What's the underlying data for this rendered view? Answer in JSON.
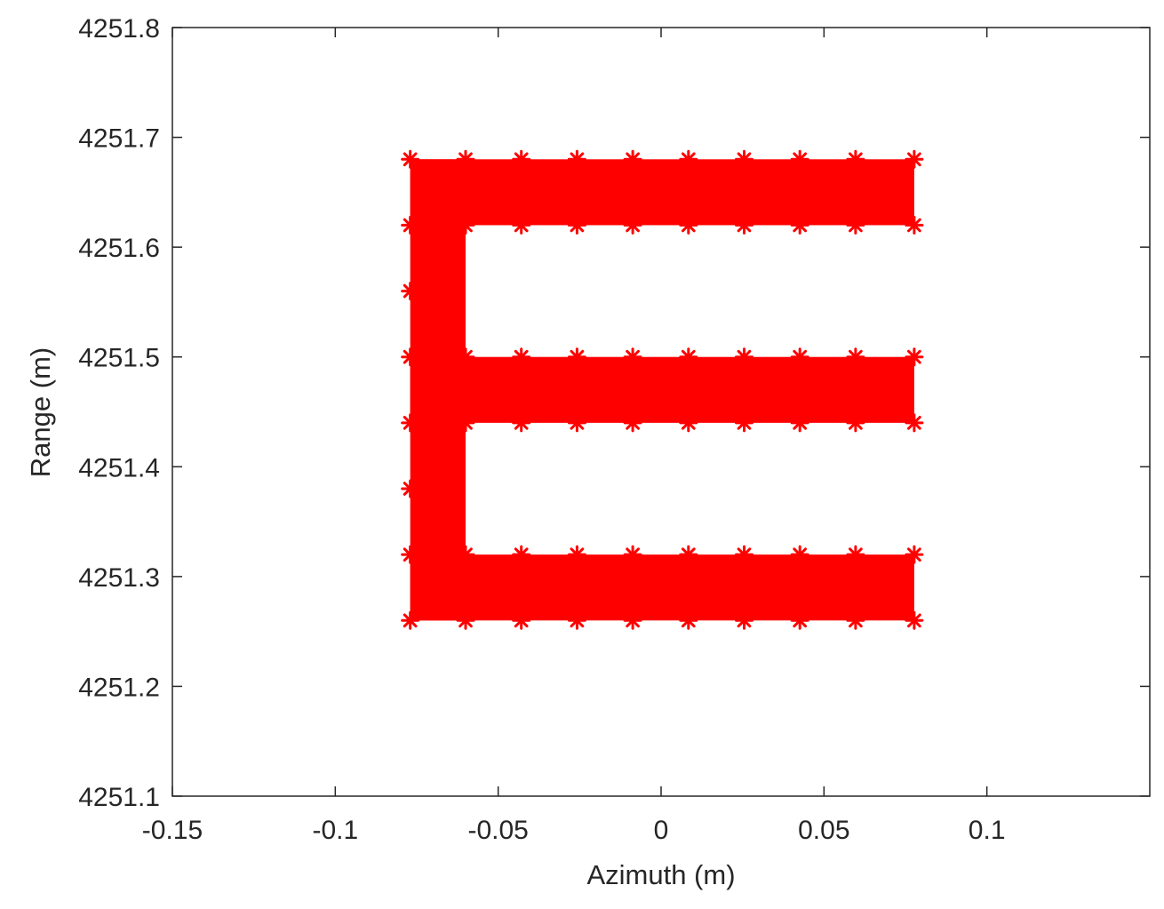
{
  "chart_data": {
    "type": "scatter",
    "title": "",
    "xlabel": "Azimuth (m)",
    "ylabel": "Range (m)",
    "xlim": [
      -0.15,
      0.15
    ],
    "ylim": [
      4251.1,
      4251.8
    ],
    "xticks": [
      -0.15,
      -0.1,
      -0.05,
      0,
      0.05,
      0.1
    ],
    "xtick_labels": [
      "-0.15",
      "-0.1",
      "-0.05",
      "0",
      "0.05",
      "0.1"
    ],
    "yticks": [
      4251.1,
      4251.2,
      4251.3,
      4251.4,
      4251.5,
      4251.6,
      4251.7,
      4251.8
    ],
    "ytick_labels": [
      "4251.1",
      "4251.2",
      "4251.3",
      "4251.4",
      "4251.5",
      "4251.6",
      "4251.7",
      "4251.8"
    ],
    "grid": false,
    "legend": "none",
    "color": "#ff0000",
    "marker": "asterisk",
    "filled_regions": [
      {
        "x": [
          -0.077,
          0.0777
        ],
        "y": [
          4251.62,
          4251.68
        ]
      },
      {
        "x": [
          -0.077,
          0.0777
        ],
        "y": [
          4251.44,
          4251.5
        ]
      },
      {
        "x": [
          -0.077,
          0.0777
        ],
        "y": [
          4251.26,
          4251.32
        ]
      },
      {
        "x": [
          -0.077,
          -0.06
        ],
        "y": [
          4251.26,
          4251.68
        ]
      }
    ],
    "series": [
      {
        "points": [
          {
            "x": -0.077,
            "y": 4251.68
          },
          {
            "x": -0.06,
            "y": 4251.68
          },
          {
            "x": -0.0429,
            "y": 4251.68
          },
          {
            "x": -0.0258,
            "y": 4251.68
          },
          {
            "x": -0.0087,
            "y": 4251.68
          },
          {
            "x": 0.0084,
            "y": 4251.68
          },
          {
            "x": 0.0255,
            "y": 4251.68
          },
          {
            "x": 0.0426,
            "y": 4251.68
          },
          {
            "x": 0.0597,
            "y": 4251.68
          },
          {
            "x": 0.0777,
            "y": 4251.68
          },
          {
            "x": -0.077,
            "y": 4251.62
          },
          {
            "x": -0.06,
            "y": 4251.62
          },
          {
            "x": -0.0429,
            "y": 4251.62
          },
          {
            "x": -0.0258,
            "y": 4251.62
          },
          {
            "x": -0.0087,
            "y": 4251.62
          },
          {
            "x": 0.0084,
            "y": 4251.62
          },
          {
            "x": 0.0255,
            "y": 4251.62
          },
          {
            "x": 0.0426,
            "y": 4251.62
          },
          {
            "x": 0.0597,
            "y": 4251.62
          },
          {
            "x": 0.0777,
            "y": 4251.62
          },
          {
            "x": -0.077,
            "y": 4251.56
          },
          {
            "x": -0.077,
            "y": 4251.5
          },
          {
            "x": -0.06,
            "y": 4251.5
          },
          {
            "x": -0.0429,
            "y": 4251.5
          },
          {
            "x": -0.0258,
            "y": 4251.5
          },
          {
            "x": -0.0087,
            "y": 4251.5
          },
          {
            "x": 0.0084,
            "y": 4251.5
          },
          {
            "x": 0.0255,
            "y": 4251.5
          },
          {
            "x": 0.0426,
            "y": 4251.5
          },
          {
            "x": 0.0597,
            "y": 4251.5
          },
          {
            "x": 0.0777,
            "y": 4251.5
          },
          {
            "x": -0.077,
            "y": 4251.44
          },
          {
            "x": -0.06,
            "y": 4251.44
          },
          {
            "x": -0.0429,
            "y": 4251.44
          },
          {
            "x": -0.0258,
            "y": 4251.44
          },
          {
            "x": -0.0087,
            "y": 4251.44
          },
          {
            "x": 0.0084,
            "y": 4251.44
          },
          {
            "x": 0.0255,
            "y": 4251.44
          },
          {
            "x": 0.0426,
            "y": 4251.44
          },
          {
            "x": 0.0597,
            "y": 4251.44
          },
          {
            "x": 0.0777,
            "y": 4251.44
          },
          {
            "x": -0.077,
            "y": 4251.38
          },
          {
            "x": -0.077,
            "y": 4251.32
          },
          {
            "x": -0.06,
            "y": 4251.32
          },
          {
            "x": -0.0429,
            "y": 4251.32
          },
          {
            "x": -0.0258,
            "y": 4251.32
          },
          {
            "x": -0.0087,
            "y": 4251.32
          },
          {
            "x": 0.0084,
            "y": 4251.32
          },
          {
            "x": 0.0255,
            "y": 4251.32
          },
          {
            "x": 0.0426,
            "y": 4251.32
          },
          {
            "x": 0.0597,
            "y": 4251.32
          },
          {
            "x": 0.0777,
            "y": 4251.32
          },
          {
            "x": -0.077,
            "y": 4251.26
          },
          {
            "x": -0.06,
            "y": 4251.26
          },
          {
            "x": -0.0429,
            "y": 4251.26
          },
          {
            "x": -0.0258,
            "y": 4251.26
          },
          {
            "x": -0.0087,
            "y": 4251.26
          },
          {
            "x": 0.0084,
            "y": 4251.26
          },
          {
            "x": 0.0255,
            "y": 4251.26
          },
          {
            "x": 0.0426,
            "y": 4251.26
          },
          {
            "x": 0.0597,
            "y": 4251.26
          },
          {
            "x": 0.0777,
            "y": 4251.26
          }
        ]
      }
    ]
  }
}
